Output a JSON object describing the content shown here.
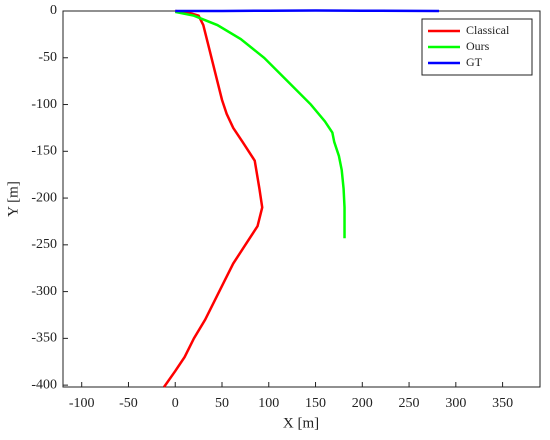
{
  "chart_data": {
    "type": "line",
    "xlabel": "X [m]",
    "ylabel": "Y [m]",
    "xlim": [
      -120,
      390
    ],
    "ylim": [
      -402,
      0
    ],
    "xticks": [
      -100,
      -50,
      0,
      50,
      100,
      150,
      200,
      250,
      300,
      350
    ],
    "yticks": [
      -400,
      -350,
      -300,
      -250,
      -200,
      -150,
      -100,
      -50,
      0
    ],
    "grid": false,
    "legend": "upper right",
    "series": [
      {
        "name": "Classical",
        "color": "#ff0000",
        "x": [
          0,
          15,
          25,
          30,
          35,
          40,
          45,
          50,
          55,
          62,
          72,
          85,
          90,
          93,
          88,
          75,
          62,
          52,
          42,
          32,
          20,
          10,
          0,
          -12
        ],
        "values": [
          0,
          -2,
          -5,
          -15,
          -35,
          -55,
          -75,
          -95,
          -110,
          -125,
          -140,
          -160,
          -190,
          -210,
          -230,
          -250,
          -270,
          -290,
          -310,
          -330,
          -350,
          -370,
          -385,
          -402
        ]
      },
      {
        "name": "Ours",
        "color": "#00ff00",
        "x": [
          0,
          20,
          45,
          70,
          95,
          120,
          145,
          160,
          168,
          170,
          175,
          178,
          180,
          181,
          181
        ],
        "values": [
          -1,
          -5,
          -15,
          -30,
          -50,
          -75,
          -100,
          -118,
          -130,
          -140,
          -155,
          -170,
          -190,
          -210,
          -243
        ]
      },
      {
        "name": "GT",
        "color": "#0000ff",
        "x": [
          0,
          50,
          100,
          150,
          200,
          282
        ],
        "values": [
          0,
          0,
          0.3,
          0.5,
          0.3,
          0
        ]
      }
    ]
  }
}
